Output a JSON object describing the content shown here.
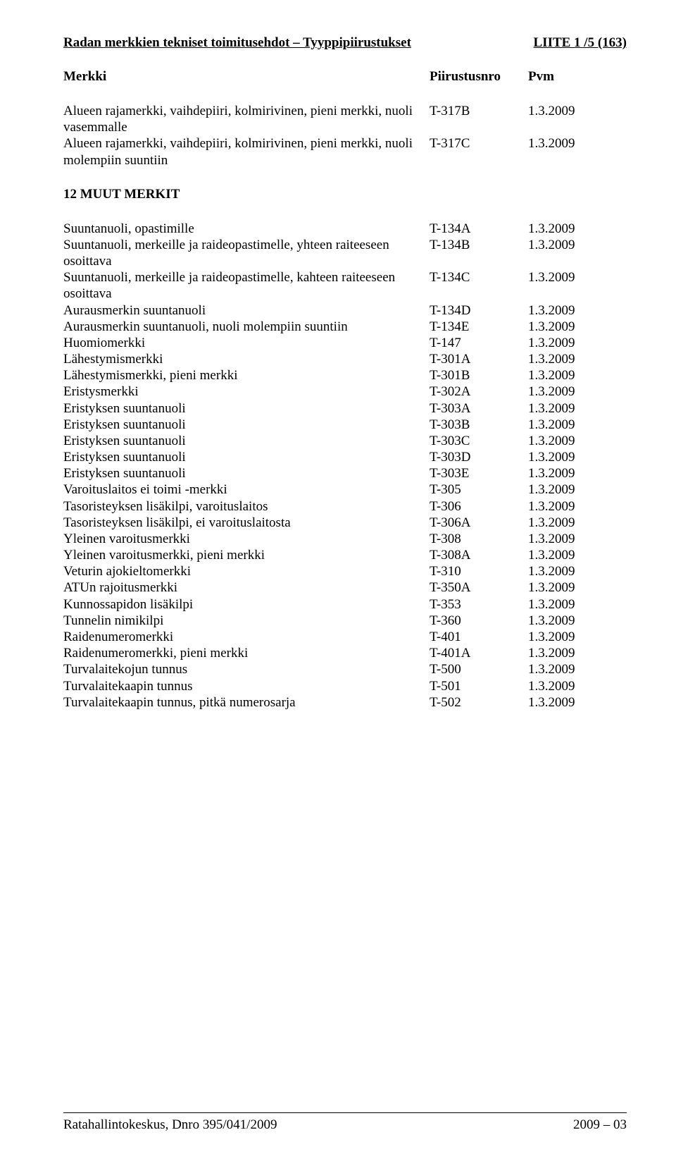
{
  "header": {
    "left": "Radan merkkien tekniset toimitusehdot – Tyyppipiirustukset",
    "right": "LIITE 1 /5 (163)"
  },
  "columns": {
    "label": "Merkki",
    "code": "Piirustusnro",
    "date": "Pvm"
  },
  "topEntries": [
    {
      "label": "Alueen rajamerkki, vaihdepiiri, kolmirivinen, pieni merkki, nuoli vasemmalle",
      "code": "T-317B",
      "date": "1.3.2009"
    },
    {
      "label": "Alueen rajamerkki, vaihdepiiri, kolmirivinen, pieni merkki, nuoli molempiin suuntiin",
      "code": "T-317C",
      "date": "1.3.2009"
    }
  ],
  "sectionTitle": "12 MUUT MERKIT",
  "entries": [
    {
      "label": "Suuntanuoli, opastimille",
      "code": "T-134A",
      "date": "1.3.2009"
    },
    {
      "label": "Suuntanuoli, merkeille ja raideopastimelle, yhteen raiteeseen osoittava",
      "code": "T-134B",
      "date": "1.3.2009"
    },
    {
      "label": "Suuntanuoli, merkeille ja raideopastimelle, kahteen raiteeseen osoittava",
      "code": "T-134C",
      "date": "1.3.2009"
    },
    {
      "label": "Aurausmerkin suuntanuoli",
      "code": "T-134D",
      "date": "1.3.2009"
    },
    {
      "label": "Aurausmerkin suuntanuoli, nuoli molempiin suuntiin",
      "code": "T-134E",
      "date": "1.3.2009"
    },
    {
      "label": "Huomiomerkki",
      "code": "T-147",
      "date": "1.3.2009"
    },
    {
      "label": "Lähestymismerkki",
      "code": "T-301A",
      "date": "1.3.2009"
    },
    {
      "label": "Lähestymismerkki, pieni merkki",
      "code": "T-301B",
      "date": "1.3.2009"
    },
    {
      "label": "Eristysmerkki",
      "code": "T-302A",
      "date": "1.3.2009"
    },
    {
      "label": "Eristyksen suuntanuoli",
      "code": "T-303A",
      "date": "1.3.2009"
    },
    {
      "label": "Eristyksen suuntanuoli",
      "code": "T-303B",
      "date": "1.3.2009"
    },
    {
      "label": "Eristyksen suuntanuoli",
      "code": "T-303C",
      "date": "1.3.2009"
    },
    {
      "label": "Eristyksen suuntanuoli",
      "code": "T-303D",
      "date": "1.3.2009"
    },
    {
      "label": "Eristyksen suuntanuoli",
      "code": "T-303E",
      "date": "1.3.2009"
    },
    {
      "label": "Varoituslaitos ei toimi -merkki",
      "code": "T-305",
      "date": "1.3.2009"
    },
    {
      "label": "Tasoristeyksen lisäkilpi, varoituslaitos",
      "code": "T-306",
      "date": "1.3.2009"
    },
    {
      "label": "Tasoristeyksen lisäkilpi, ei varoituslaitosta",
      "code": "T-306A",
      "date": "1.3.2009"
    },
    {
      "label": "Yleinen varoitusmerkki",
      "code": "T-308",
      "date": "1.3.2009"
    },
    {
      "label": "Yleinen varoitusmerkki, pieni merkki",
      "code": "T-308A",
      "date": "1.3.2009"
    },
    {
      "label": "Veturin ajokieltomerkki",
      "code": "T-310",
      "date": "1.3.2009"
    },
    {
      "label": "ATUn rajoitusmerkki",
      "code": "T-350A",
      "date": "1.3.2009"
    },
    {
      "label": "Kunnossapidon lisäkilpi",
      "code": "T-353",
      "date": "1.3.2009"
    },
    {
      "label": "Tunnelin nimikilpi",
      "code": "T-360",
      "date": "1.3.2009"
    },
    {
      "label": "Raidenumeromerkki",
      "code": "T-401",
      "date": "1.3.2009"
    },
    {
      "label": "Raidenumeromerkki, pieni merkki",
      "code": "T-401A",
      "date": "1.3.2009"
    },
    {
      "label": "Turvalaitekojun tunnus",
      "code": "T-500",
      "date": "1.3.2009"
    },
    {
      "label": "Turvalaitekaapin tunnus",
      "code": "T-501",
      "date": "1.3.2009"
    },
    {
      "label": "Turvalaitekaapin tunnus, pitkä numerosarja",
      "code": "T-502",
      "date": "1.3.2009"
    }
  ],
  "footer": {
    "left": "Ratahallintokeskus, Dnro 395/041/2009",
    "right": "2009 – 03"
  }
}
